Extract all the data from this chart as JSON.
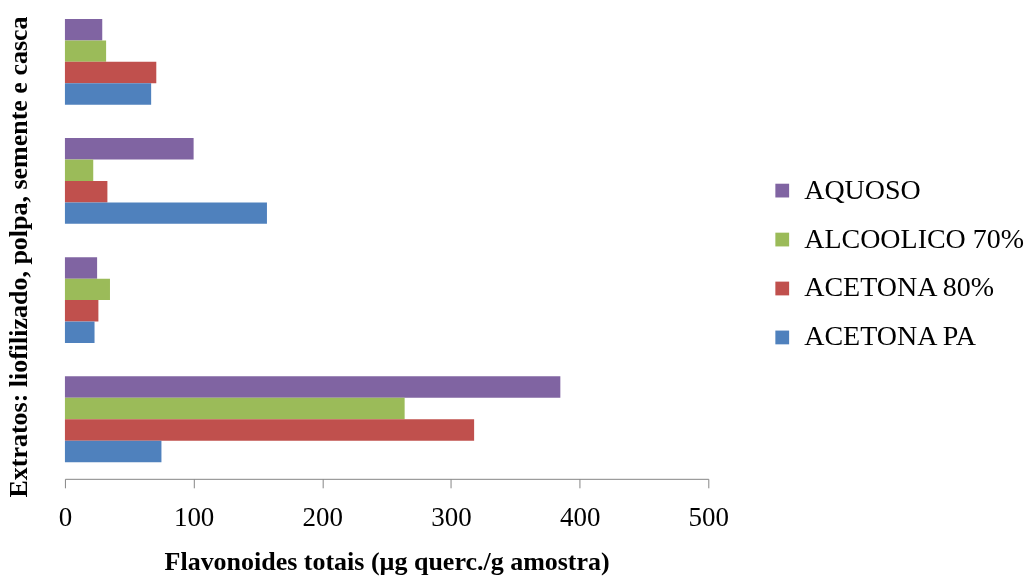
{
  "chart_data": {
    "type": "bar",
    "orientation": "horizontal",
    "xlabel": "Flavonoides totais (µg querc./g amostra)",
    "ylabel": "Extratos: liofilizado, polpa, semente e casca",
    "categories": [
      null,
      null,
      null,
      null
    ],
    "series": [
      {
        "name": "AQUOSO",
        "color": "#8064a2",
        "values": [
          29,
          100,
          25,
          385
        ]
      },
      {
        "name": "ALCOOLICO 70%",
        "color": "#9bbb59",
        "values": [
          32,
          22,
          35,
          264
        ]
      },
      {
        "name": "ACETONA 80%",
        "color": "#c0504d",
        "values": [
          71,
          33,
          26,
          318
        ]
      },
      {
        "name": "ACETONA PA",
        "color": "#4f81bd",
        "values": [
          67,
          157,
          23,
          75
        ]
      }
    ],
    "xlim": [
      0,
      500
    ],
    "xticks": [
      0,
      100,
      200,
      300,
      400,
      500
    ],
    "legend": "right",
    "tick_labels": "x",
    "grid": false
  }
}
